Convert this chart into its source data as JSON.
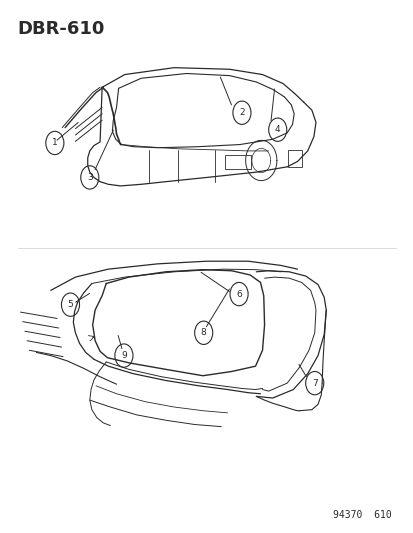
{
  "title": "DBR-610",
  "footer": "94370  610",
  "bg_color": "#ffffff",
  "line_color": "#2a2a2a",
  "title_fontsize": 13,
  "footer_fontsize": 7
}
